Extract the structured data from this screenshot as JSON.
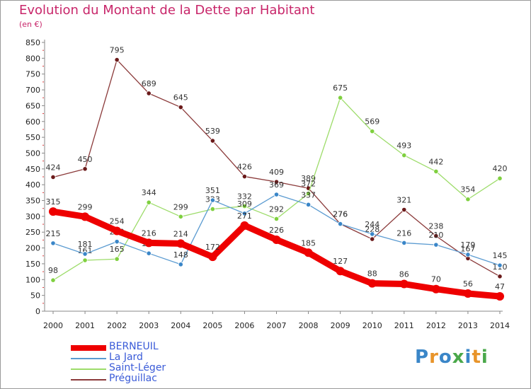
{
  "title": "Evolution du Montant de la Dette par Habitant",
  "subtitle": "(en €)",
  "logo": {
    "text": "Proxiti",
    "colors": [
      "#3a86c8",
      "#e8942a",
      "#3a86c8",
      "#4aa84a",
      "#3a86c8",
      "#e8942a",
      "#4aa84a"
    ]
  },
  "chart_data": {
    "type": "line",
    "x": [
      2000,
      2001,
      2002,
      2003,
      2004,
      2005,
      2006,
      2007,
      2008,
      2009,
      2010,
      2011,
      2012,
      2013,
      2014
    ],
    "ylim": [
      0,
      850
    ],
    "yticks": [
      0,
      50,
      100,
      150,
      200,
      250,
      300,
      350,
      400,
      450,
      500,
      550,
      600,
      650,
      700,
      750,
      800,
      850
    ],
    "grid": false,
    "legend_position": "bottom-left",
    "series": [
      {
        "name": "BERNEUIL",
        "color": "#ee0000",
        "marker": "#ee0000",
        "width": 9,
        "values": [
          315,
          299,
          254,
          216,
          214,
          172,
          271,
          226,
          185,
          127,
          88,
          86,
          70,
          56,
          47
        ]
      },
      {
        "name": "La Jard",
        "color": "#5b9bd1",
        "marker": "#3a86c8",
        "width": 1.3,
        "values": [
          215,
          181,
          220,
          183,
          148,
          351,
          309,
          369,
          337,
          276,
          244,
          216,
          210,
          179,
          145
        ]
      },
      {
        "name": "Saint-Léger",
        "color": "#9ddc6a",
        "marker": "#7fd03f",
        "width": 1.3,
        "values": [
          98,
          161,
          165,
          344,
          299,
          323,
          332,
          292,
          372,
          675,
          569,
          493,
          442,
          354,
          420
        ]
      },
      {
        "name": "Préguillac",
        "color": "#8b3a3a",
        "marker": "#6b1a1a",
        "width": 1.3,
        "values": [
          424,
          450,
          795,
          689,
          645,
          539,
          426,
          409,
          389,
          276,
          228,
          321,
          238,
          167,
          110
        ]
      }
    ]
  }
}
